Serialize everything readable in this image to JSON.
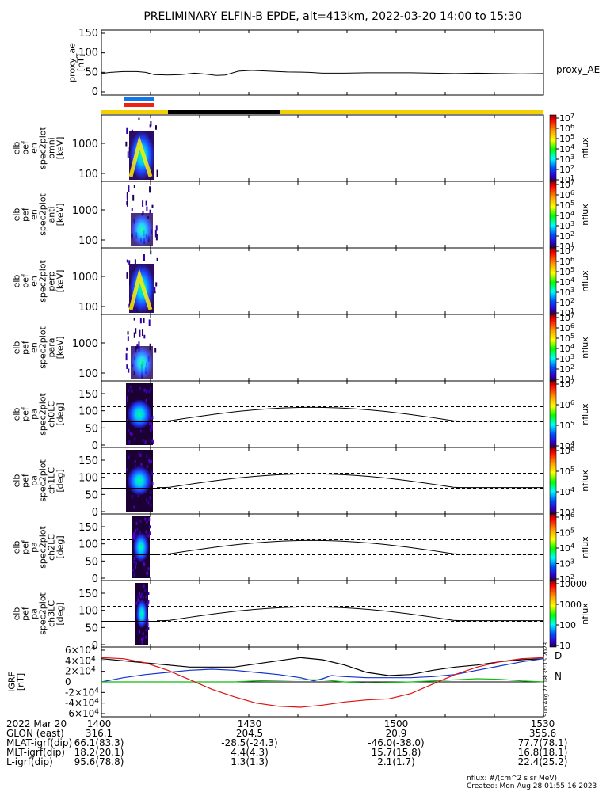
{
  "title": "PRELIMINARY ELFIN-B EPDE, alt=413km, 2022-03-20 14:00 to 15:30",
  "colors": {
    "red": "#dd1111",
    "blue": "#1133cc",
    "green": "#11bb11",
    "black": "#000000",
    "yellow": "#f5d000",
    "bar_blue": "#1177ee",
    "bar_red": "#ee2211"
  },
  "chart_data": [
    {
      "type": "line",
      "name": "proxy_ae_panel",
      "ylabel": [
        "proxy_ae",
        "[nT]"
      ],
      "ylim": [
        0,
        150
      ],
      "yticks": [
        0,
        50,
        100,
        150
      ],
      "series": [
        {
          "name": "proxy_AE",
          "x": [
            0,
            0.02,
            0.05,
            0.08,
            0.1,
            0.12,
            0.15,
            0.18,
            0.21,
            0.23,
            0.26,
            0.28,
            0.31,
            0.34,
            0.38,
            0.42,
            0.47,
            0.5,
            0.55,
            0.6,
            0.65,
            0.7,
            0.75,
            0.8,
            0.85,
            0.9,
            0.95,
            1.0
          ],
          "y": [
            47,
            50,
            52,
            52,
            50,
            44,
            43,
            44,
            48,
            46,
            42,
            43,
            53,
            55,
            53,
            51,
            50,
            48,
            48,
            49,
            49,
            49,
            48,
            47,
            48,
            47,
            46,
            47
          ]
        }
      ]
    },
    {
      "type": "heatmap",
      "name": "spec-omni",
      "ylabel": [
        "elb",
        "pef",
        "en",
        "spec2plot",
        "omni",
        "[keV]"
      ],
      "yticks": [
        "100",
        "1000"
      ],
      "zlabel": "nflux",
      "cbar_labels": [
        "10^7",
        "10^6",
        "10^5",
        "10^4",
        "10^3",
        "10^2",
        "10^1"
      ]
    },
    {
      "type": "heatmap",
      "name": "spec-anti",
      "ylabel": [
        "elb",
        "pef",
        "en",
        "spec2plot",
        "anti",
        "[keV]"
      ],
      "yticks": [
        "100",
        "1000"
      ],
      "zlabel": "nflux",
      "cbar_labels": [
        "10^7",
        "10^6",
        "10^5",
        "10^4",
        "10^3",
        "10^2",
        "10^1"
      ]
    },
    {
      "type": "heatmap",
      "name": "spec-perp",
      "ylabel": [
        "elb",
        "pef",
        "en",
        "spec2plot",
        "perp",
        "[keV]"
      ],
      "yticks": [
        "100",
        "1000"
      ],
      "zlabel": "nflux",
      "cbar_labels": [
        "10^7",
        "10^6",
        "10^5",
        "10^4",
        "10^3",
        "10^2",
        "10^1"
      ]
    },
    {
      "type": "heatmap",
      "name": "spec-para",
      "ylabel": [
        "elb",
        "pef",
        "en",
        "spec2plot",
        "para",
        "[keV]"
      ],
      "yticks": [
        "100",
        "1000"
      ],
      "zlabel": "nflux",
      "cbar_labels": [
        "10^7",
        "10^6",
        "10^5",
        "10^4",
        "10^3",
        "10^2",
        "10^1"
      ]
    },
    {
      "type": "heatmap",
      "name": "pa-ch0LC",
      "ylabel": [
        "elb",
        "pef",
        "pa",
        "spec2plot",
        "ch0LC",
        "[deg]"
      ],
      "ylim": [
        0,
        180
      ],
      "yticks": [
        "0",
        "50",
        "100",
        "150"
      ],
      "zlabel": "nflux",
      "cbar_labels": [
        "10^7",
        "10^6",
        "10^5",
        "10^4"
      ]
    },
    {
      "type": "heatmap",
      "name": "pa-ch1LC",
      "ylabel": [
        "elb",
        "pef",
        "pa",
        "spec2plot",
        "ch1LC",
        "[deg]"
      ],
      "ylim": [
        0,
        180
      ],
      "yticks": [
        "0",
        "50",
        "100",
        "150"
      ],
      "zlabel": "nflux",
      "cbar_labels": [
        "10^6",
        "10^5",
        "10^4",
        "10^3"
      ]
    },
    {
      "type": "heatmap",
      "name": "pa-ch2LC",
      "ylabel": [
        "elb",
        "pef",
        "pa",
        "spec2plot",
        "ch2LC",
        "[deg]"
      ],
      "ylim": [
        0,
        180
      ],
      "yticks": [
        "0",
        "50",
        "100",
        "150"
      ],
      "zlabel": "nflux",
      "cbar_labels": [
        "10^6",
        "10^5",
        "10^4",
        "10^3",
        "10^2"
      ]
    },
    {
      "type": "heatmap",
      "name": "pa-ch3LC",
      "ylabel": [
        "elb",
        "pef",
        "pa",
        "spec2plot",
        "ch3LC",
        "[deg]"
      ],
      "ylim": [
        0,
        180
      ],
      "yticks": [
        "0",
        "50",
        "100",
        "150"
      ],
      "zlabel": "nflux",
      "cbar_labels": [
        "10000",
        "1000",
        "100",
        "10"
      ]
    },
    {
      "type": "line",
      "name": "igrf_panel",
      "ylabel": [
        "IGRF",
        "[nT]"
      ],
      "ylim": [
        -60000,
        60000
      ],
      "yticks": [
        "-6×10^4",
        "-4×10^4",
        "-2×10^4",
        "0",
        "2×10^4",
        "4×10^4",
        "6×10^4"
      ],
      "legend_marks": [
        "D",
        "N"
      ],
      "side_text": "Sun Aug 27 18:35:16 2023",
      "series": [
        {
          "color": "black",
          "x": [
            0,
            0.1,
            0.2,
            0.3,
            0.4,
            0.45,
            0.5,
            0.55,
            0.6,
            0.65,
            0.7,
            0.75,
            0.8,
            0.85,
            0.9,
            0.95,
            1.0
          ],
          "y": [
            44000,
            36000,
            28000,
            28000,
            40000,
            46000,
            42000,
            32000,
            18000,
            12000,
            14000,
            22000,
            28000,
            32000,
            38000,
            42000,
            44000
          ]
        },
        {
          "color": "blue",
          "x": [
            0,
            0.05,
            0.1,
            0.15,
            0.2,
            0.25,
            0.3,
            0.35,
            0.4,
            0.45,
            0.48,
            0.5,
            0.52,
            0.55,
            0.6,
            0.65,
            0.7,
            0.75,
            0.8,
            0.85,
            0.9,
            0.95,
            1.0
          ],
          "y": [
            0,
            8000,
            14000,
            18000,
            22000,
            24000,
            22000,
            18000,
            14000,
            8000,
            2000,
            6000,
            12000,
            10000,
            8000,
            8000,
            8000,
            10000,
            14000,
            22000,
            30000,
            38000,
            44000
          ]
        },
        {
          "color": "green",
          "x": [
            0,
            0.1,
            0.2,
            0.3,
            0.35,
            0.4,
            0.45,
            0.5,
            0.55,
            0.6,
            0.65,
            0.7,
            0.75,
            0.8,
            0.85,
            0.9,
            0.95,
            1.0
          ],
          "y": [
            0,
            0,
            0,
            0,
            2000,
            3000,
            4000,
            4000,
            0,
            -2000,
            -1000,
            0,
            2000,
            4000,
            6000,
            5000,
            2000,
            0
          ]
        },
        {
          "color": "red",
          "x": [
            0,
            0.05,
            0.1,
            0.15,
            0.2,
            0.25,
            0.3,
            0.35,
            0.4,
            0.45,
            0.5,
            0.55,
            0.6,
            0.65,
            0.7,
            0.75,
            0.8,
            0.85,
            0.9,
            0.95,
            1.0
          ],
          "y": [
            46000,
            44000,
            36000,
            22000,
            4000,
            -14000,
            -28000,
            -40000,
            -46000,
            -48000,
            -44000,
            -38000,
            -34000,
            -32000,
            -22000,
            -4000,
            14000,
            28000,
            38000,
            44000,
            46000
          ]
        }
      ]
    }
  ],
  "footer": {
    "rows": [
      {
        "label": "2022 Mar 20",
        "values": [
          "1400",
          "1430",
          "1500",
          "1530"
        ]
      },
      {
        "label": "GLON (east)",
        "values": [
          "316.1",
          "204.5",
          "20.9",
          "355.6"
        ]
      },
      {
        "label": "MLAT-igrf(dip)",
        "values": [
          "66.1(83.3)",
          "-28.5(-24.3)",
          "-46.0(-38.0)",
          "77.7(78.1)"
        ]
      },
      {
        "label": "MLT-igrf(dip)",
        "values": [
          "18.2(20.1)",
          "4.4(4.3)",
          "15.7(15.8)",
          "16.8(18.1)"
        ]
      },
      {
        "label": "L-igrf(dip)",
        "values": [
          "95.6(78.8)",
          "1.3(1.3)",
          "2.1(1.7)",
          "22.4(25.2)"
        ]
      }
    ],
    "units": "nflux: #/(cm^2 s sr MeV)",
    "created": "Created: Mon Aug 28 01:55:16 2023"
  }
}
